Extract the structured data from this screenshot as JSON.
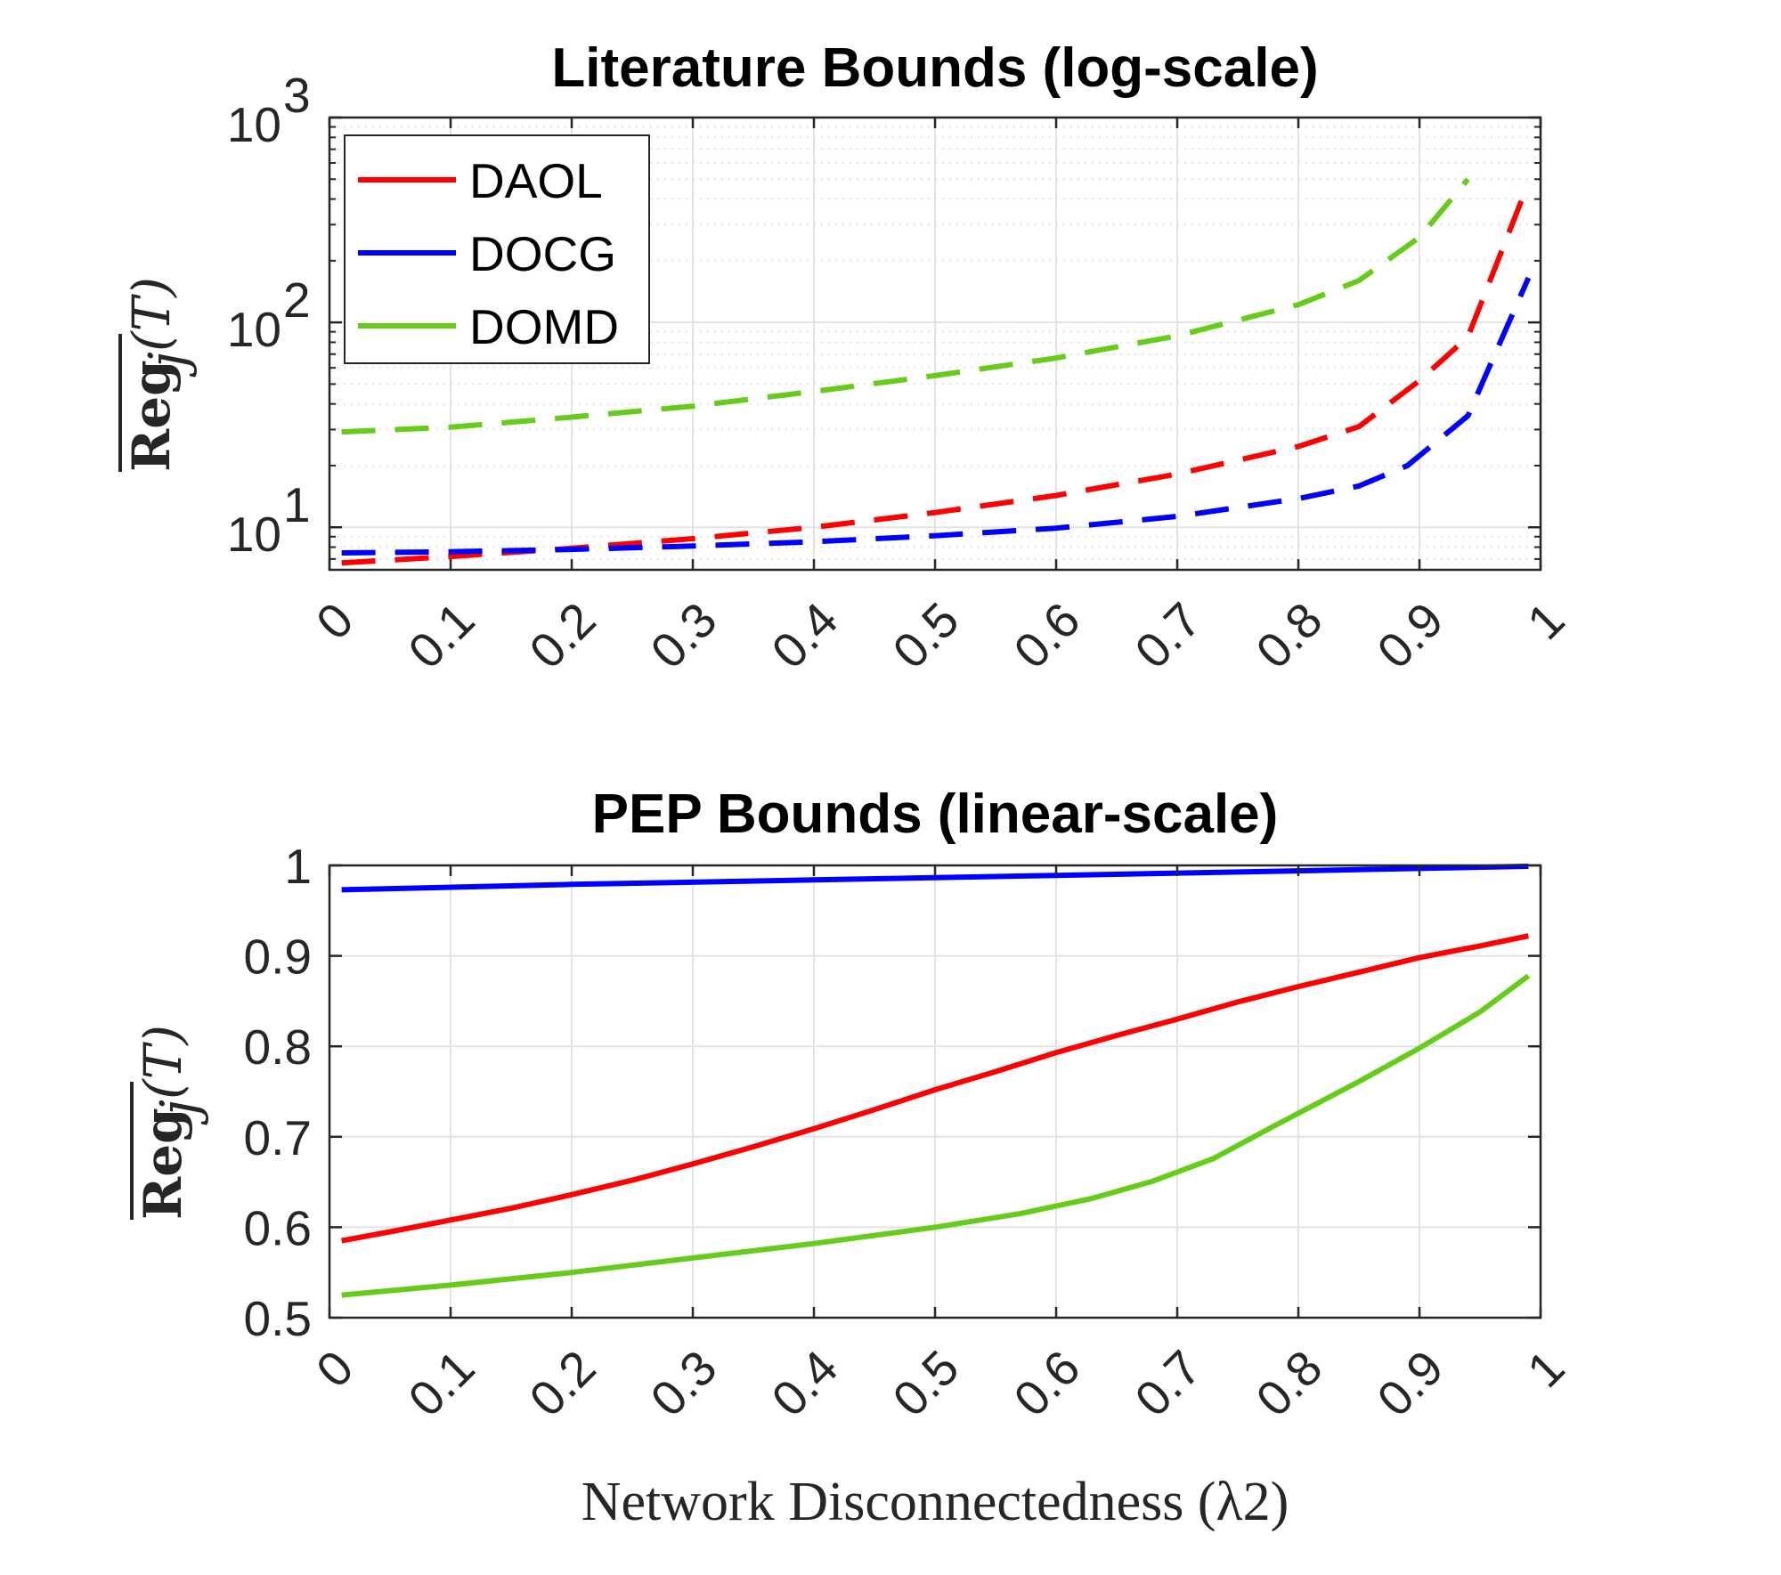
{
  "chart_data": [
    {
      "type": "line",
      "title": "Literature Bounds (log-scale)",
      "ylabel": "Reg_j(T)",
      "xlabel": "",
      "yscale": "log",
      "xlim": [
        0,
        1
      ],
      "ylim": [
        6.2,
        1000
      ],
      "x_ticks": [
        "0",
        "0.1",
        "0.2",
        "0.3",
        "0.4",
        "0.5",
        "0.6",
        "0.7",
        "0.8",
        "0.9",
        "1"
      ],
      "y_ticks": [
        {
          "base": "10",
          "exp": "1",
          "value": 10
        },
        {
          "base": "10",
          "exp": "2",
          "value": 100
        },
        {
          "base": "10",
          "exp": "3",
          "value": 1000
        }
      ],
      "grid": true,
      "minor_grid": true,
      "legend_position": "top-left",
      "line_style": "dashed",
      "series": [
        {
          "name": "DAOL",
          "color": "#ff0000",
          "points": [
            [
              0.01,
              6.7
            ],
            [
              0.1,
              7.2
            ],
            [
              0.2,
              7.9
            ],
            [
              0.3,
              8.8
            ],
            [
              0.4,
              10
            ],
            [
              0.5,
              11.8
            ],
            [
              0.6,
              14.3
            ],
            [
              0.7,
              18.2
            ],
            [
              0.8,
              24.8
            ],
            [
              0.85,
              31
            ],
            [
              0.9,
              52
            ],
            [
              0.94,
              85
            ],
            [
              0.99,
              480
            ]
          ]
        },
        {
          "name": "DOCG",
          "color": "#0000ff",
          "points": [
            [
              0.01,
              7.5
            ],
            [
              0.1,
              7.6
            ],
            [
              0.2,
              7.8
            ],
            [
              0.3,
              8.1
            ],
            [
              0.4,
              8.5
            ],
            [
              0.5,
              9.1
            ],
            [
              0.6,
              9.9
            ],
            [
              0.7,
              11.3
            ],
            [
              0.8,
              13.8
            ],
            [
              0.85,
              15.9
            ],
            [
              0.89,
              20
            ],
            [
              0.94,
              35
            ],
            [
              0.99,
              165
            ]
          ]
        },
        {
          "name": "DOMD",
          "color": "#66cc1a",
          "points": [
            [
              0.01,
              29.2
            ],
            [
              0.1,
              30.8
            ],
            [
              0.2,
              34.5
            ],
            [
              0.3,
              39
            ],
            [
              0.4,
              46
            ],
            [
              0.5,
              55
            ],
            [
              0.6,
              67
            ],
            [
              0.7,
              86
            ],
            [
              0.8,
              122
            ],
            [
              0.85,
              160
            ],
            [
              0.9,
              260
            ],
            [
              0.94,
              500
            ]
          ]
        }
      ]
    },
    {
      "type": "line",
      "title": "PEP Bounds (linear-scale)",
      "ylabel": "Reg_j(T)",
      "xlabel": "Network Disconnectedness (λ2)",
      "yscale": "linear",
      "xlim": [
        0,
        1
      ],
      "ylim": [
        0.5,
        1
      ],
      "x_ticks": [
        "0",
        "0.1",
        "0.2",
        "0.3",
        "0.4",
        "0.5",
        "0.6",
        "0.7",
        "0.8",
        "0.9",
        "1"
      ],
      "y_ticks": [
        "0.5",
        "0.6",
        "0.7",
        "0.8",
        "0.9",
        "1"
      ],
      "grid": true,
      "line_style": "solid",
      "series": [
        {
          "name": "DAOL",
          "color": "#ff0000",
          "points": [
            [
              0.01,
              0.585
            ],
            [
              0.05,
              0.595
            ],
            [
              0.1,
              0.608
            ],
            [
              0.15,
              0.621
            ],
            [
              0.2,
              0.636
            ],
            [
              0.25,
              0.652
            ],
            [
              0.3,
              0.67
            ],
            [
              0.35,
              0.689
            ],
            [
              0.4,
              0.709
            ],
            [
              0.45,
              0.73
            ],
            [
              0.5,
              0.752
            ],
            [
              0.55,
              0.772
            ],
            [
              0.6,
              0.793
            ],
            [
              0.65,
              0.812
            ],
            [
              0.7,
              0.83
            ],
            [
              0.75,
              0.849
            ],
            [
              0.8,
              0.866
            ],
            [
              0.85,
              0.882
            ],
            [
              0.9,
              0.898
            ],
            [
              0.95,
              0.911
            ],
            [
              0.99,
              0.922
            ]
          ]
        },
        {
          "name": "DOCG",
          "color": "#0000ff",
          "points": [
            [
              0.01,
              0.973
            ],
            [
              0.2,
              0.979
            ],
            [
              0.4,
              0.984
            ],
            [
              0.6,
              0.989
            ],
            [
              0.8,
              0.994
            ],
            [
              0.99,
              0.999
            ]
          ]
        },
        {
          "name": "DOMD",
          "color": "#66cc1a",
          "points": [
            [
              0.01,
              0.525
            ],
            [
              0.1,
              0.536
            ],
            [
              0.2,
              0.55
            ],
            [
              0.3,
              0.566
            ],
            [
              0.4,
              0.582
            ],
            [
              0.5,
              0.6
            ],
            [
              0.57,
              0.615
            ],
            [
              0.63,
              0.632
            ],
            [
              0.68,
              0.651
            ],
            [
              0.73,
              0.676
            ],
            [
              0.78,
              0.712
            ],
            [
              0.85,
              0.761
            ],
            [
              0.9,
              0.798
            ],
            [
              0.95,
              0.838
            ],
            [
              0.99,
              0.878
            ]
          ]
        }
      ]
    }
  ]
}
